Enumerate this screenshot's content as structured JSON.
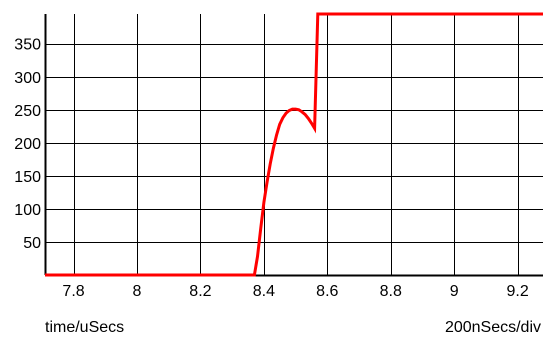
{
  "chart_data": {
    "type": "line",
    "xlabel": "time/uSecs",
    "ylabel": "",
    "scale_label": "200nSecs/div",
    "xlim": [
      7.71,
      9.28
    ],
    "ylim": [
      0,
      395
    ],
    "x_ticks": [
      7.8,
      8.0,
      8.2,
      8.4,
      8.6,
      8.8,
      9.0,
      9.2
    ],
    "x_tick_labels": [
      "7.8",
      "8",
      "8.2",
      "8.4",
      "8.6",
      "8.8",
      "9",
      "9.2"
    ],
    "y_ticks": [
      50,
      100,
      150,
      200,
      250,
      300,
      350
    ],
    "y_tick_labels": [
      "50",
      "100",
      "150",
      "200",
      "250",
      "300",
      "350"
    ],
    "grid": true,
    "series": [
      {
        "color": "#ff0000",
        "points": [
          [
            7.71,
            0
          ],
          [
            8.37,
            0
          ],
          [
            8.38,
            28
          ],
          [
            8.39,
            70
          ],
          [
            8.4,
            110
          ],
          [
            8.41,
            140
          ],
          [
            8.42,
            168
          ],
          [
            8.43,
            192
          ],
          [
            8.44,
            212
          ],
          [
            8.45,
            228
          ],
          [
            8.46,
            238
          ],
          [
            8.47,
            245
          ],
          [
            8.48,
            249
          ],
          [
            8.49,
            251
          ],
          [
            8.5,
            251
          ],
          [
            8.51,
            250
          ],
          [
            8.52,
            247
          ],
          [
            8.53,
            243
          ],
          [
            8.54,
            237
          ],
          [
            8.55,
            230
          ],
          [
            8.56,
            222
          ],
          [
            8.57,
            395
          ],
          [
            9.28,
            395
          ]
        ]
      }
    ]
  }
}
